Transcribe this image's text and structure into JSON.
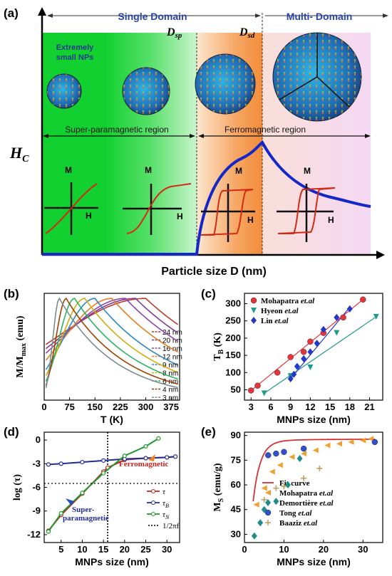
{
  "panel_a": {
    "tag": "(a)",
    "single_domain": "Single Domain",
    "multi_domain": "Multi- Domain",
    "dsp": "D",
    "dsp_sub": "sp",
    "dsd": "D",
    "dsd_sub": "sd",
    "small_nps_1": "Extremely",
    "small_nps_2": "small NPs",
    "sp_region": "Super-paramagnetic region",
    "fm_region": "Ferromagnetic region",
    "hc_main": "H",
    "hc_sub": "C",
    "x_title": "Particle size D (nm)",
    "m_label": "M",
    "h_label": "H",
    "colors": {
      "green": "#1fd23a",
      "orange": "#f5a15a",
      "pink": "#f7d6ee",
      "blue_curve": "#1428c8",
      "red_curve": "#d32a14"
    }
  },
  "chart_data": [
    {
      "type": "line",
      "tag": "(b)",
      "xlabel": "T (K)",
      "ylabel": "M/M",
      "ylabel_sub": "max",
      "ylabel_unit": " (emu)",
      "xlim": [
        0,
        400
      ],
      "ylim": [
        0,
        1.05
      ],
      "xticks": [
        0,
        75,
        150,
        225,
        300,
        375
      ],
      "series": [
        {
          "name": "24 nm",
          "color": "#c0392b",
          "peak": 300
        },
        {
          "name": "20 nm",
          "color": "#7d3c98",
          "peak": 270
        },
        {
          "name": "16 nm",
          "color": "#8e44ad",
          "peak": 240
        },
        {
          "name": "12 nm",
          "color": "#e67e22",
          "peak": 200
        },
        {
          "name": "9 nm",
          "color": "#2e86c1",
          "peak": 150
        },
        {
          "name": "8 nm",
          "color": "#d4ac0d",
          "peak": 120
        },
        {
          "name": "6 nm",
          "color": "#28b463",
          "peak": 90
        },
        {
          "name": "4 nm",
          "color": "#a04000",
          "peak": 65
        },
        {
          "name": "3 nm",
          "color": "#7f8c8d",
          "peak": 45
        }
      ]
    },
    {
      "type": "scatter",
      "tag": "(c)",
      "xlabel": "MNPs size (nm)",
      "ylabel": "T",
      "ylabel_sub": "B",
      "ylabel_unit": " (K)",
      "xlim": [
        2,
        23
      ],
      "ylim": [
        20,
        330
      ],
      "xticks": [
        3,
        6,
        9,
        12,
        15,
        18,
        21
      ],
      "yticks": [
        50,
        100,
        150,
        200,
        250,
        300
      ],
      "series": [
        {
          "name": "Mohapatra et.al",
          "color": "#e8333a",
          "marker": "circle",
          "x": [
            3,
            4,
            7,
            9,
            11,
            12,
            14,
            17,
            20
          ],
          "y": [
            48,
            62,
            100,
            145,
            160,
            190,
            215,
            260,
            312
          ]
        },
        {
          "name": "Hyeon et.al",
          "color": "#1e9a8a",
          "marker": "triangle",
          "x": [
            5,
            9,
            12,
            16,
            22
          ],
          "y": [
            40,
            90,
            115,
            215,
            262
          ]
        },
        {
          "name": "Lin et.al",
          "color": "#2337c9",
          "marker": "diamond",
          "x": [
            9,
            9.5,
            10,
            11,
            12,
            13,
            14,
            16,
            18
          ],
          "y": [
            82,
            95,
            118,
            140,
            160,
            185,
            225,
            260,
            285
          ]
        }
      ]
    },
    {
      "type": "line",
      "tag": "(d)",
      "xlabel": "MNPs size (nm)",
      "ylabel": "log (τ)",
      "xlim": [
        1,
        33
      ],
      "ylim": [
        -13,
        1
      ],
      "xticks": [
        5,
        10,
        15,
        20,
        25,
        30
      ],
      "yticks": [
        0,
        -3,
        -6,
        -9,
        -12
      ],
      "annot_ferro": "Ferromagnetic",
      "annot_super_1": "Super-",
      "annot_super_2": "paramagnetic",
      "series": [
        {
          "name": "τ",
          "color": "#cc2020",
          "x": [
            2,
            5,
            10,
            15,
            16,
            20,
            25,
            30,
            32
          ],
          "y": [
            -11.5,
            -9.5,
            -6.8,
            -4.0,
            -3.5,
            -2.5,
            -2.3,
            -2.2,
            -2.1
          ]
        },
        {
          "name": "τ",
          "name_sub": "B",
          "color": "#1f2e9c",
          "x": [
            2,
            5,
            10,
            15,
            20,
            25,
            30,
            32
          ],
          "y": [
            -3.1,
            -3.0,
            -2.8,
            -2.6,
            -2.4,
            -2.3,
            -2.2,
            -2.1
          ]
        },
        {
          "name": "τ",
          "name_sub": "N",
          "color": "#1f9a30",
          "x": [
            2,
            5,
            10,
            15,
            20,
            25,
            28
          ],
          "y": [
            -11.6,
            -9.3,
            -6.7,
            -4.2,
            -2.0,
            -0.8,
            0.2
          ]
        },
        {
          "name": "1/2πf",
          "color": "#000000",
          "dash": true,
          "y_const": -5.5
        }
      ],
      "vline_x": 16
    },
    {
      "type": "scatter",
      "tag": "(e)",
      "xlabel": "MNPs size (nm)",
      "ylabel": "M",
      "ylabel_sub": "S",
      "ylabel_unit": " (emu/g)",
      "xlim": [
        0,
        35
      ],
      "ylim": [
        25,
        92
      ],
      "xticks": [
        0,
        10,
        20,
        30
      ],
      "yticks": [
        30,
        45,
        60,
        75,
        90
      ],
      "series": [
        {
          "name": "Fit curve",
          "color": "#d63232",
          "line": true
        },
        {
          "name": "Mohapatra et.al",
          "color": "#f0a030",
          "marker": "triangle-left",
          "x": [
            3,
            5,
            7,
            9,
            12,
            15,
            18,
            21,
            24,
            27,
            30,
            32
          ],
          "y": [
            48,
            58,
            68,
            72,
            77,
            79,
            81,
            84,
            85,
            86,
            87,
            88
          ]
        },
        {
          "name": "Demortière et.al",
          "color": "#1e8c8c",
          "marker": "diamond",
          "x": [
            2.5,
            4,
            5,
            8,
            11,
            14
          ],
          "y": [
            29,
            37,
            45,
            50,
            60,
            76
          ]
        },
        {
          "name": "Tong et.al",
          "color": "#3050d0",
          "marker": "circle",
          "x": [
            6,
            8,
            10,
            15,
            33
          ],
          "y": [
            78,
            79,
            80,
            82,
            86
          ]
        },
        {
          "name": "Baaziz et.al",
          "color": "#c0a060",
          "marker": "cross",
          "x": [
            5,
            8,
            10,
            15,
            19
          ],
          "y": [
            51,
            58,
            59,
            64,
            70
          ]
        }
      ]
    }
  ]
}
